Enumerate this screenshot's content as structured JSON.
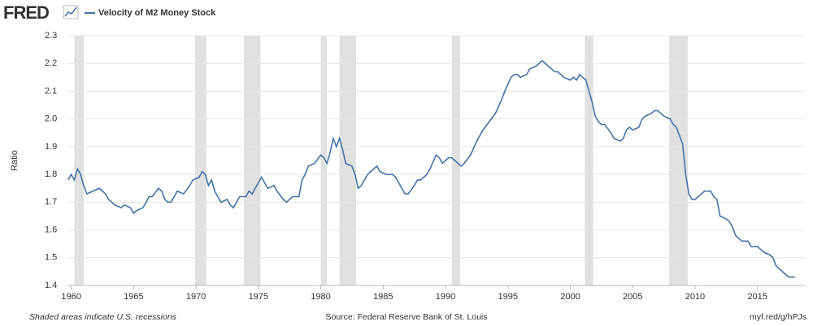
{
  "logo": "FRED",
  "chart_data": {
    "type": "line",
    "series": [
      {
        "name": "Velocity of M2 Money Stock",
        "color": "#4572a7",
        "values": [
          1.78,
          1.8,
          1.78,
          1.82,
          1.8,
          1.76,
          1.73,
          1.74,
          1.75,
          1.74,
          1.73,
          1.71,
          1.69,
          1.68,
          1.69,
          1.68,
          1.66,
          1.67,
          1.68,
          1.72,
          1.72,
          1.75,
          1.74,
          1.71,
          1.7,
          1.7,
          1.74,
          1.73,
          1.76,
          1.78,
          1.79,
          1.81,
          1.8,
          1.76,
          1.78,
          1.74,
          1.72,
          1.7,
          1.71,
          1.69,
          1.68,
          1.72,
          1.72,
          1.74,
          1.73,
          1.77,
          1.79,
          1.77,
          1.75,
          1.76,
          1.74,
          1.71,
          1.7,
          1.72,
          1.72,
          1.78,
          1.8,
          1.83,
          1.84,
          1.87,
          1.86,
          1.84,
          1.88,
          1.93,
          1.9,
          1.93,
          1.89,
          1.84,
          1.83,
          1.8,
          1.75,
          1.76,
          1.8,
          1.82,
          1.83,
          1.81,
          1.8,
          1.8,
          1.79,
          1.75,
          1.73,
          1.73,
          1.76,
          1.78,
          1.78,
          1.8,
          1.82,
          1.87,
          1.86,
          1.84,
          1.86,
          1.86,
          1.85,
          1.84,
          1.83,
          1.84,
          1.87,
          1.92,
          1.96,
          1.99,
          2.02,
          2.07,
          2.1,
          2.15,
          2.16,
          2.16,
          2.15,
          2.16,
          2.18,
          2.19,
          2.2,
          2.21,
          2.2,
          2.18,
          2.17,
          2.17,
          2.15,
          2.14,
          2.15,
          2.14,
          2.16,
          2.15,
          2.14,
          2.1,
          2.06,
          2.01,
          1.99,
          1.98,
          1.98,
          1.95,
          1.93,
          1.92,
          1.93,
          1.96,
          1.97,
          1.96,
          1.97,
          2.0,
          2.01,
          2.02,
          2.03,
          2.03,
          2.02,
          2.01,
          2.0,
          1.98,
          1.97,
          1.94,
          1.91,
          1.8,
          1.73,
          1.71,
          1.71,
          1.73,
          1.74,
          1.74,
          1.72,
          1.71,
          1.65,
          1.64,
          1.63,
          1.61,
          1.58,
          1.56,
          1.56,
          1.54,
          1.54,
          1.53,
          1.52,
          1.51,
          1.5,
          1.47,
          1.45,
          1.43,
          1.43,
          1.43
        ]
      }
    ],
    "x": [
      1959.75,
      1960.0,
      1960.25,
      1960.5,
      1960.75,
      1961.0,
      1961.25,
      1961.75,
      1962.25,
      1962.5,
      1962.75,
      1963.0,
      1963.5,
      1964.0,
      1964.25,
      1964.75,
      1965.0,
      1965.25,
      1965.75,
      1966.25,
      1966.5,
      1967.0,
      1967.25,
      1967.5,
      1967.75,
      1968.0,
      1968.5,
      1969.0,
      1969.5,
      1969.75,
      1970.25,
      1970.5,
      1970.75,
      1971.0,
      1971.25,
      1971.5,
      1971.75,
      1972.0,
      1972.5,
      1972.75,
      1973.0,
      1973.5,
      1974.0,
      1974.25,
      1974.5,
      1975.0,
      1975.25,
      1975.5,
      1975.75,
      1976.25,
      1976.5,
      1977.0,
      1977.25,
      1977.75,
      1978.25,
      1978.5,
      1978.75,
      1979.0,
      1979.5,
      1980.0,
      1980.25,
      1980.5,
      1980.75,
      1981.0,
      1981.25,
      1981.5,
      1981.75,
      1982.0,
      1982.5,
      1982.75,
      1983.0,
      1983.25,
      1983.75,
      1984.25,
      1984.5,
      1984.75,
      1985.25,
      1985.75,
      1986.0,
      1986.5,
      1986.75,
      1987.0,
      1987.5,
      1987.75,
      1988.0,
      1988.5,
      1988.75,
      1989.25,
      1989.5,
      1989.75,
      1990.25,
      1990.5,
      1990.75,
      1991.0,
      1991.25,
      1991.5,
      1992.0,
      1992.5,
      1993.0,
      1993.5,
      1994.0,
      1994.5,
      1994.75,
      1995.25,
      1995.5,
      1995.75,
      1996.0,
      1996.5,
      1996.75,
      1997.25,
      1997.5,
      1997.75,
      1998.0,
      1998.5,
      1998.75,
      1999.0,
      1999.5,
      2000.0,
      2000.25,
      2000.5,
      2000.75,
      2001.0,
      2001.25,
      2001.5,
      2001.75,
      2002.0,
      2002.25,
      2002.5,
      2002.75,
      2003.25,
      2003.5,
      2004.0,
      2004.25,
      2004.5,
      2004.75,
      2005.0,
      2005.5,
      2005.75,
      2006.0,
      2006.5,
      2006.75,
      2007.0,
      2007.25,
      2007.5,
      2008.0,
      2008.25,
      2008.5,
      2008.75,
      2009.0,
      2009.25,
      2009.5,
      2009.75,
      2010.0,
      2010.5,
      2010.75,
      2011.25,
      2011.5,
      2011.75,
      2012.0,
      2012.5,
      2012.75,
      2013.0,
      2013.25,
      2013.75,
      2014.25,
      2014.5,
      2015.0,
      2015.25,
      2015.5,
      2016.0,
      2016.25,
      2016.5,
      2017.0,
      2017.5,
      2017.75,
      2018.0
    ],
    "recessions": [
      [
        1960.25,
        1961.0
      ],
      [
        1969.92,
        1970.83
      ],
      [
        1973.83,
        1975.17
      ],
      [
        1980.0,
        1980.5
      ],
      [
        1981.5,
        1982.83
      ],
      [
        1990.5,
        1991.17
      ],
      [
        2001.17,
        2001.83
      ],
      [
        2007.92,
        2009.42
      ]
    ],
    "xlim": [
      1959.7,
      2018.8
    ],
    "ylim": [
      1.4,
      2.3
    ],
    "xticks": [
      1960,
      1965,
      1970,
      1975,
      1980,
      1985,
      1990,
      1995,
      2000,
      2005,
      2010,
      2015
    ],
    "yticks": [
      1.4,
      1.5,
      1.6,
      1.7,
      1.8,
      1.9,
      {
        "value": 2,
        "label": "2.0"
      },
      2.1,
      2.2,
      2.3
    ],
    "y_label": "Ratio",
    "grid": true,
    "note": "Shaded areas indicate U.S. recessions",
    "source": "Source: Federal Reserve Bank of St. Louis",
    "link": "myf.red/g/hPJs"
  }
}
